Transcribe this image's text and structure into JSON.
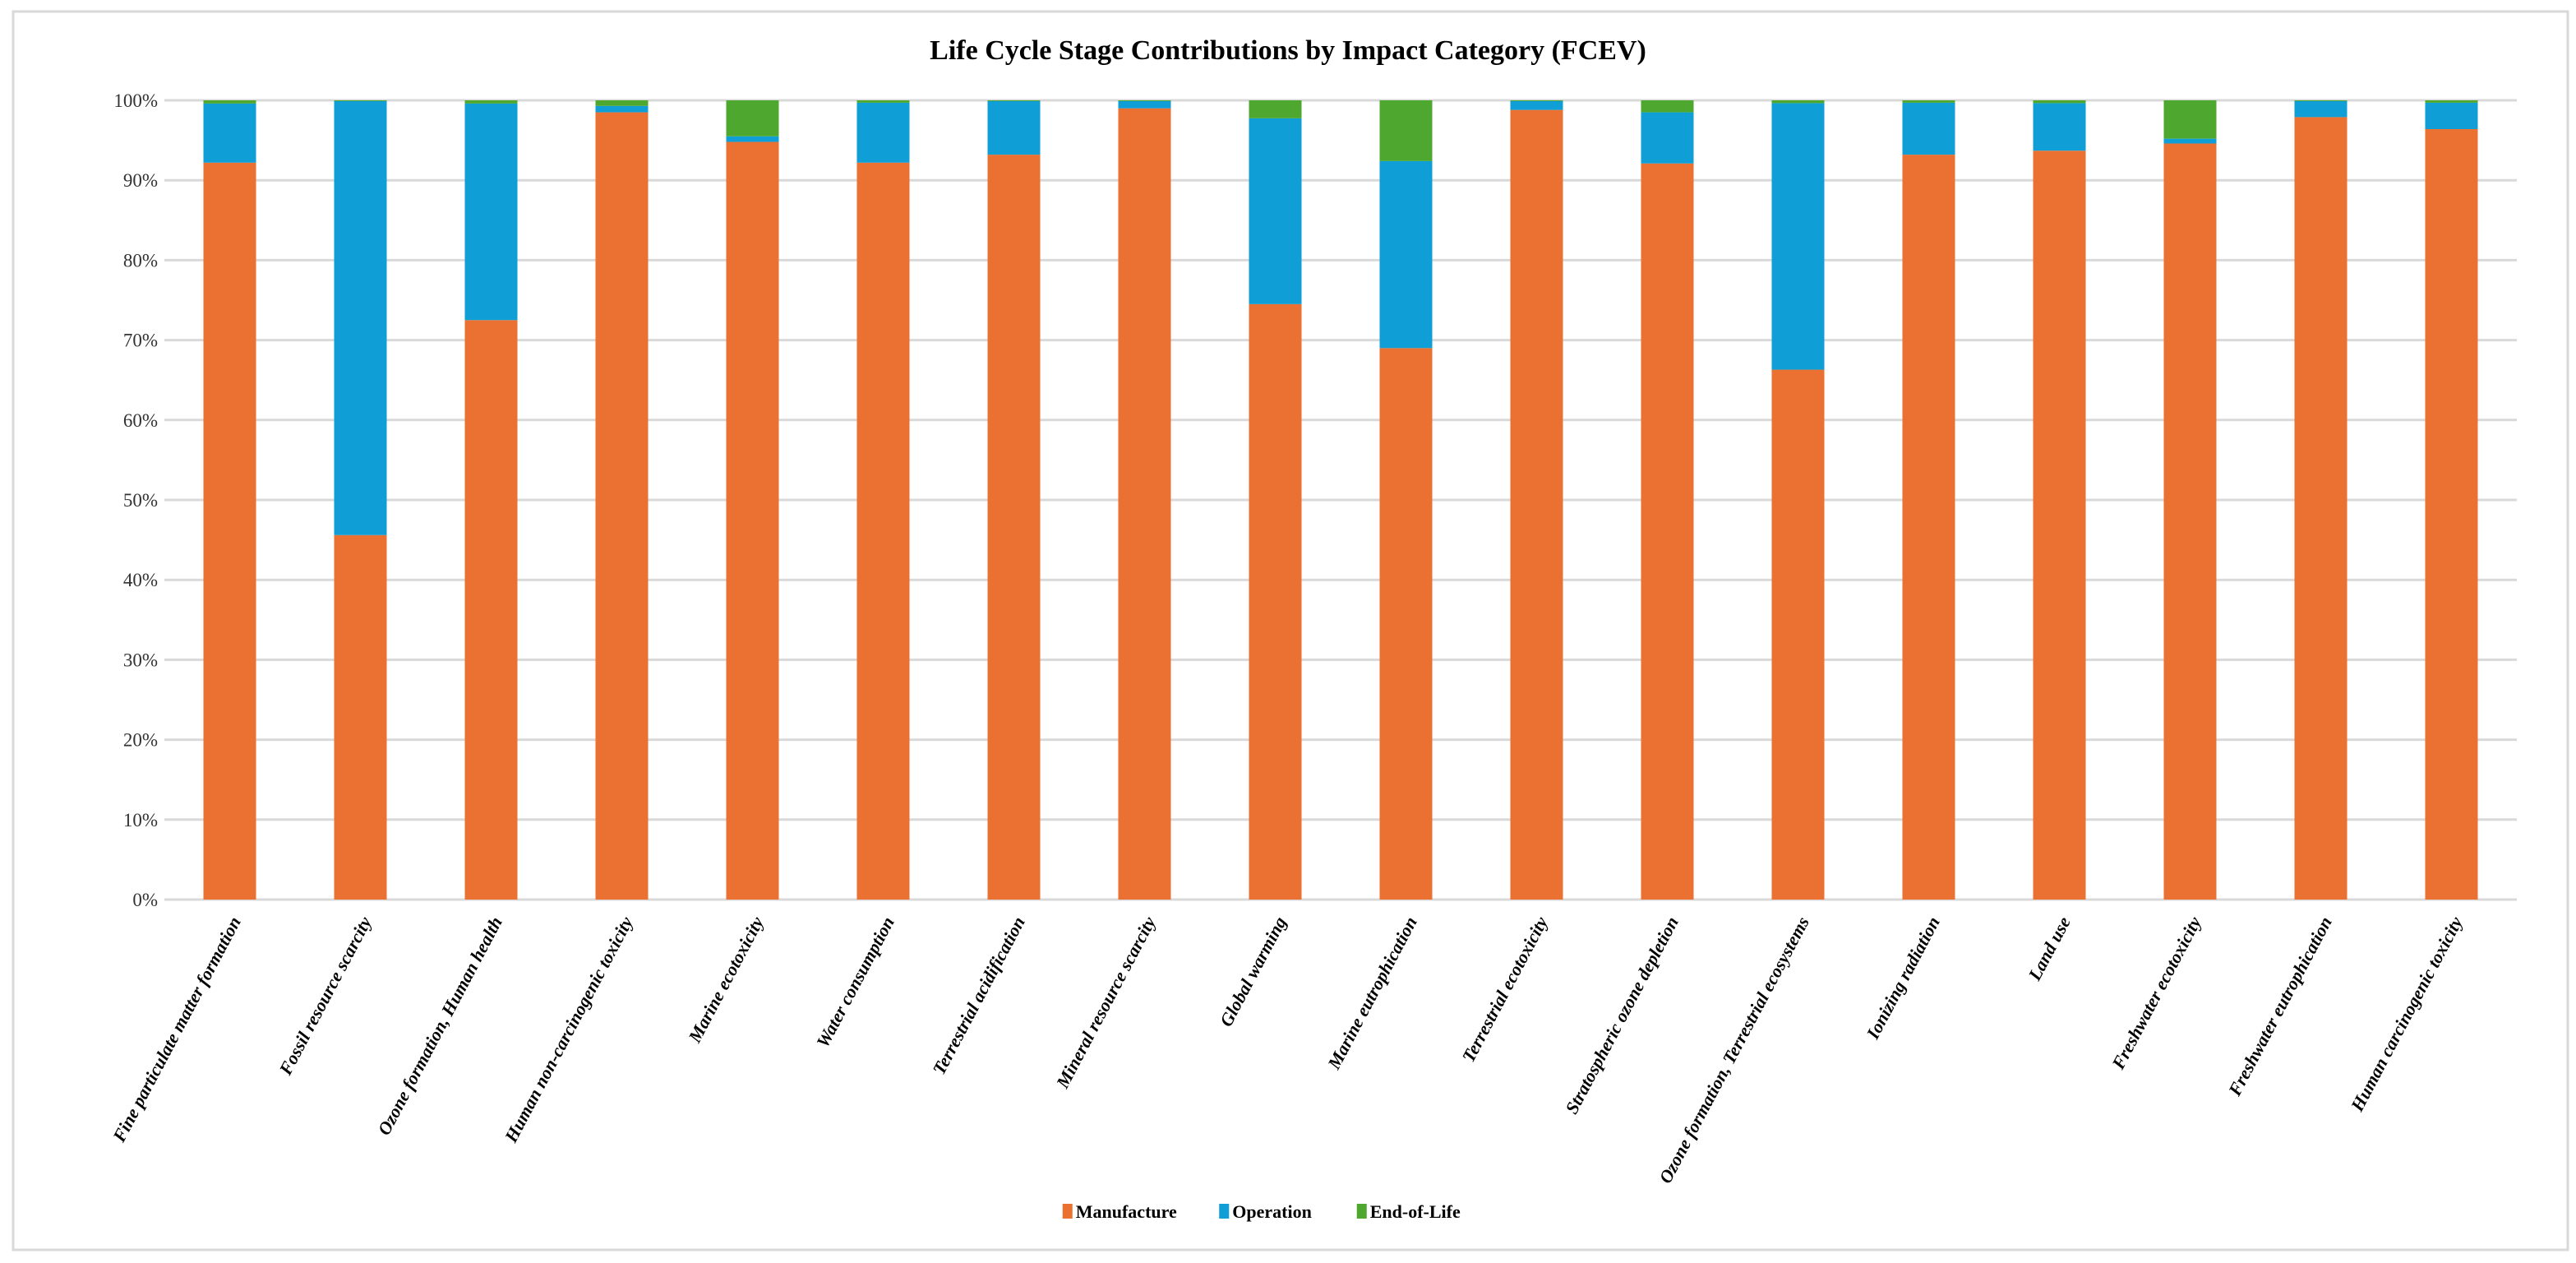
{
  "chart_data": {
    "type": "bar",
    "stacked": true,
    "title": "Life Cycle Stage Contributions by Impact Category (FCEV)",
    "xlabel": "",
    "ylabel": "",
    "ylim": [
      0,
      100
    ],
    "y_ticks": [
      "0%",
      "10%",
      "20%",
      "30%",
      "40%",
      "50%",
      "60%",
      "70%",
      "80%",
      "90%",
      "100%"
    ],
    "grid": true,
    "legend_position": "bottom",
    "categories": [
      "Fine particulate matter formation",
      "Fossil resource scarcity",
      "Ozone formation, Human health",
      "Human non-carcinogenic toxicity",
      "Marine ecotoxicity",
      "Water consumption",
      "Terrestrial acidification",
      "Mineral resource scarcity",
      "Global warming",
      "Marine eutrophication",
      "Terrestrial ecotoxicity",
      "Stratospheric ozone depletion",
      "Ozone formation, Terrestrial ecosystems",
      "Ionizing radiation",
      "Land use",
      "Freshwater ecotoxicity",
      "Freshwater eutrophication",
      "Human carcinogenic toxicity"
    ],
    "series": [
      {
        "name": "Manufacture",
        "color": "#EA7132",
        "values": [
          92.2,
          45.6,
          72.5,
          98.5,
          94.8,
          92.2,
          93.2,
          99.0,
          74.5,
          69.0,
          98.8,
          92.1,
          66.3,
          93.2,
          93.7,
          94.6,
          97.9,
          96.4
        ]
      },
      {
        "name": "Operation",
        "color": "#0F9ED5",
        "values": [
          7.4,
          54.3,
          27.1,
          0.8,
          0.7,
          7.5,
          6.7,
          0.9,
          23.25,
          23.4,
          1.1,
          6.4,
          33.35,
          6.5,
          5.95,
          0.6,
          2.0,
          3.3
        ]
      },
      {
        "name": "End-of-Life",
        "color": "#4EA72E",
        "values": [
          0.4,
          0.1,
          0.4,
          0.7,
          4.5,
          0.3,
          0.1,
          0.1,
          2.25,
          7.6,
          0.1,
          1.5,
          0.35,
          0.3,
          0.35,
          4.8,
          0.1,
          0.3
        ]
      }
    ]
  }
}
